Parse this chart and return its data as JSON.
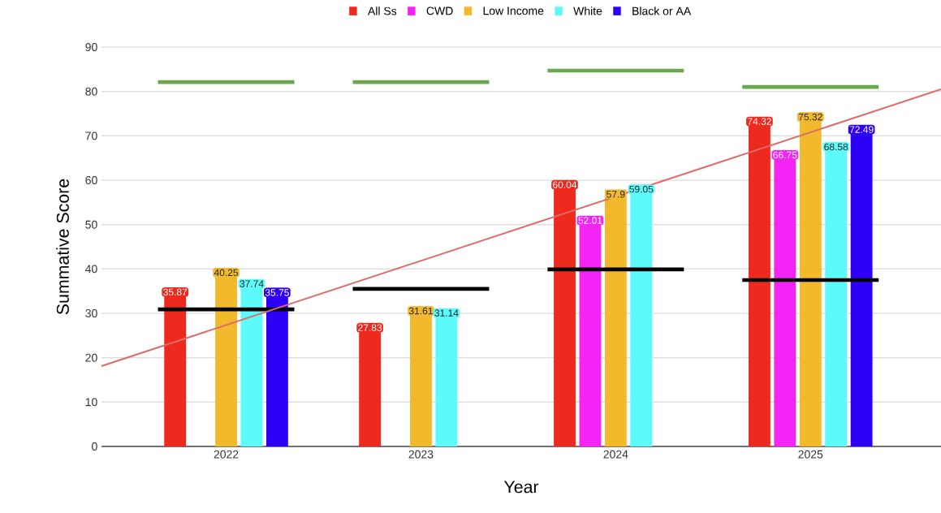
{
  "chart_data": {
    "type": "bar",
    "xlabel": "Year",
    "ylabel": "Summative Score",
    "x": [
      2022,
      2023,
      2024,
      2025
    ],
    "xlim": [
      2021.36,
      2025.67
    ],
    "xticks": [
      2022,
      2023,
      2024,
      2025
    ],
    "ylim": [
      0,
      90
    ],
    "yticks": [
      0,
      10,
      20,
      30,
      40,
      50,
      60,
      70,
      80,
      90
    ],
    "grid": "y",
    "legend": "top",
    "series": [
      {
        "name": "All Ss",
        "color": "#ee2a1e",
        "values": [
          35.87,
          27.83,
          60.04,
          74.32
        ],
        "value_labels": [
          "35.87",
          "27.83",
          "60.04",
          "74.32"
        ]
      },
      {
        "name": "CWD",
        "color": "#f425f4",
        "values": [
          null,
          null,
          52.01,
          66.75
        ],
        "value_labels": [
          null,
          null,
          "52.01",
          "66.75"
        ]
      },
      {
        "name": "Low Income",
        "color": "#f2b92d",
        "values": [
          40.25,
          31.61,
          57.9,
          75.32
        ],
        "value_labels": [
          "40.25",
          "31.61",
          "57.9",
          "75.32"
        ]
      },
      {
        "name": "White",
        "color": "#5cfafa",
        "values": [
          37.74,
          31.14,
          59.05,
          68.58
        ],
        "value_labels": [
          "37.74",
          "31.14",
          "59.05",
          "68.58"
        ]
      },
      {
        "name": "Black or AA",
        "color": "#2d00f5",
        "values": [
          35.75,
          null,
          null,
          72.49
        ],
        "value_labels": [
          "35.75",
          null,
          null,
          "72.49"
        ]
      },
      {
        "type": "line",
        "color": "#6aa84f",
        "x": [
          2021.65,
          2022.35,
          2022.5,
          2022.65,
          2023.35,
          2023.5,
          2023.65,
          2024.35,
          2024.5,
          2024.65,
          2025.35
        ],
        "values": [
          82.1,
          82.1,
          null,
          82.1,
          82.1,
          null,
          84.7,
          84.7,
          null,
          81.0,
          81.0
        ]
      },
      {
        "type": "line",
        "color": "#000000",
        "x": [
          2021.65,
          2022.35,
          2022.5,
          2022.65,
          2023.35,
          2023.5,
          2023.65,
          2024.35,
          2024.5,
          2024.65,
          2025.35
        ],
        "values": [
          30.9,
          30.9,
          null,
          35.5,
          35.5,
          null,
          39.9,
          39.9,
          null,
          37.5,
          37.5
        ]
      },
      {
        "type": "line",
        "color": "#dd6b6b",
        "x": [
          2021.36,
          2025.67
        ],
        "values": [
          18.1,
          80.5
        ]
      }
    ]
  }
}
